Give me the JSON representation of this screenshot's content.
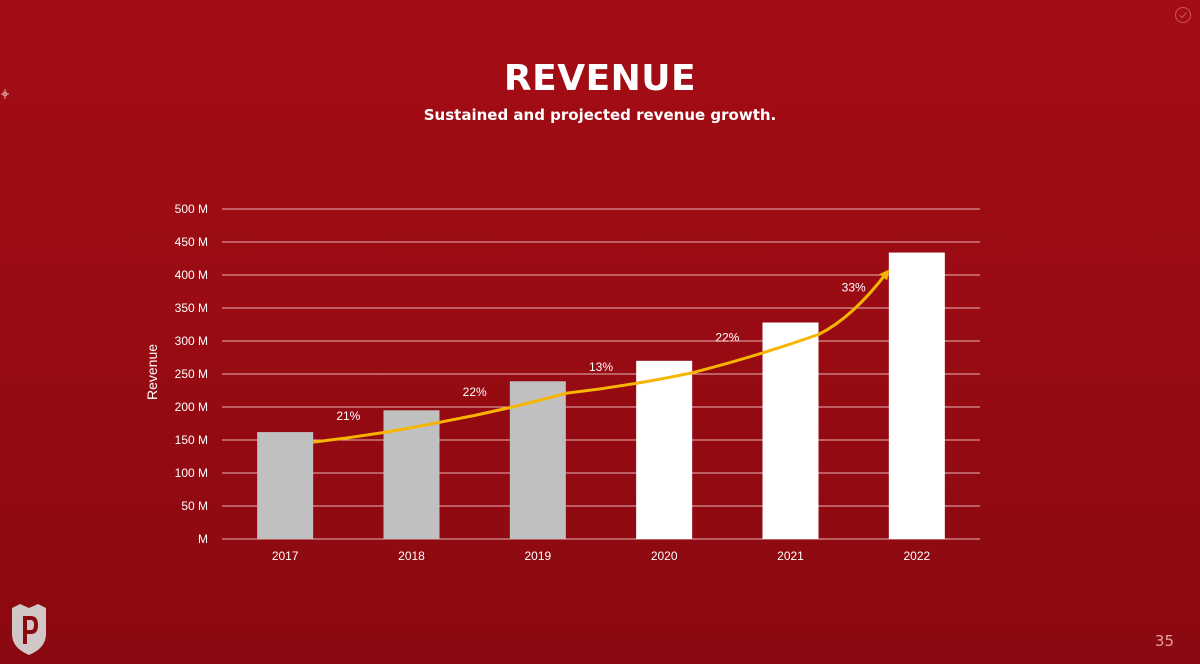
{
  "slide": {
    "title": "REVENUE",
    "subtitle": "Sustained and projected revenue growth.",
    "page_number": "35"
  },
  "icons": {
    "check": "check-circle-icon",
    "crosshair": "crosshair-icon",
    "logo": "shield-logo-p"
  },
  "colors": {
    "background": "#9a0b13",
    "historical_bar": "#c0c0c0",
    "projected_bar": "#ffffff",
    "trend_arrow": "#f7b500",
    "text": "#ffffff"
  },
  "chart_data": {
    "type": "bar",
    "ylabel": "Revenue",
    "xlabel": "",
    "ylim": [
      0,
      500
    ],
    "y_ticks": [
      "M",
      "50 M",
      "100 M",
      "150 M",
      "200 M",
      "250 M",
      "300 M",
      "350 M",
      "400 M",
      "450 M",
      "500 M"
    ],
    "y_tick_values": [
      0,
      50,
      100,
      150,
      200,
      250,
      300,
      350,
      400,
      450,
      500
    ],
    "categories": [
      "2017",
      "2018",
      "2019",
      "2020",
      "2021",
      "2022"
    ],
    "values": [
      162,
      195,
      239,
      270,
      328,
      434
    ],
    "bar_kind": [
      "historical",
      "historical",
      "historical",
      "projected",
      "projected",
      "projected"
    ],
    "growth_labels": [
      "21%",
      "22%",
      "13%",
      "22%",
      "33%"
    ],
    "grid": true,
    "trend_arrow": true
  }
}
